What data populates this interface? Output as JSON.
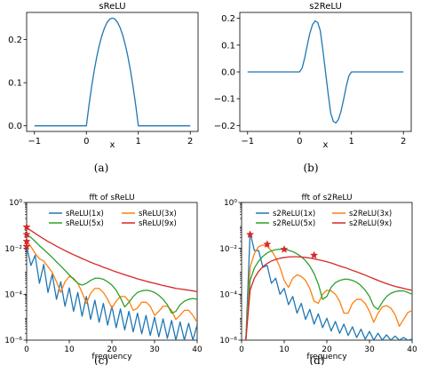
{
  "captions": [
    "(a)",
    "(b)",
    "(c)",
    "(d)"
  ],
  "chart_data": [
    {
      "type": "line",
      "title": "sReLU",
      "xlabel": "x",
      "ylabel": "",
      "xlim": [
        -1.15,
        2.15
      ],
      "ylim": [
        -0.013,
        0.263
      ],
      "xticks": [
        -1,
        0,
        1,
        2
      ],
      "yticks": [
        0.0,
        0.1,
        0.2
      ],
      "xtick_labels": [
        "−1",
        "0",
        "1",
        "2"
      ],
      "ytick_labels": [
        "0.0",
        "0.1",
        "0.2"
      ],
      "grid": false,
      "series": [
        {
          "color": "#1f77b4",
          "x": [
            -1,
            0,
            0.05,
            0.1,
            0.15,
            0.2,
            0.25,
            0.3,
            0.35,
            0.4,
            0.45,
            0.5,
            0.55,
            0.6,
            0.65,
            0.7,
            0.75,
            0.8,
            0.85,
            0.9,
            0.95,
            1,
            2
          ],
          "y": [
            0,
            0,
            0.0475,
            0.09,
            0.1275,
            0.16,
            0.1875,
            0.21,
            0.2275,
            0.24,
            0.2475,
            0.25,
            0.2475,
            0.24,
            0.2275,
            0.21,
            0.1875,
            0.16,
            0.1275,
            0.09,
            0.0475,
            0,
            0
          ]
        }
      ]
    },
    {
      "type": "line",
      "title": "s2ReLU",
      "xlabel": "x",
      "ylabel": "",
      "xlim": [
        -1.15,
        2.15
      ],
      "ylim": [
        -0.222,
        0.222
      ],
      "xticks": [
        -1,
        0,
        1,
        2
      ],
      "yticks": [
        -0.2,
        -0.1,
        0.0,
        0.1,
        0.2
      ],
      "xtick_labels": [
        "−1",
        "0",
        "1",
        "2"
      ],
      "ytick_labels": [
        "−0.2",
        "−0.1",
        "0.0",
        "0.1",
        "0.2"
      ],
      "grid": false,
      "series": [
        {
          "color": "#1f77b4",
          "x": [
            -1,
            0,
            0.05,
            0.1,
            0.15,
            0.2,
            0.25,
            0.3,
            0.35,
            0.4,
            0.45,
            0.5,
            0.55,
            0.6,
            0.65,
            0.7,
            0.75,
            0.8,
            0.85,
            0.9,
            0.95,
            1,
            2
          ],
          "y": [
            0,
            0,
            0.0147,
            0.0529,
            0.1011,
            0.1453,
            0.1768,
            0.1902,
            0.1843,
            0.1534,
            0.0801,
            0,
            -0.0801,
            -0.1534,
            -0.1843,
            -0.1902,
            -0.1768,
            -0.1453,
            -0.1011,
            -0.0529,
            -0.0147,
            0,
            0
          ]
        }
      ]
    },
    {
      "type": "line",
      "title": "fft of sReLU",
      "xlabel": "frequency",
      "ylabel": "",
      "xscale": "linear",
      "yscale": "log",
      "xlim": [
        0,
        40
      ],
      "ylim": [
        1e-06,
        1
      ],
      "xticks": [
        0,
        10,
        20,
        30,
        40
      ],
      "yticks": [
        1e-06,
        0.0001,
        0.01,
        1
      ],
      "xtick_labels": [
        "0",
        "10",
        "20",
        "30",
        "40"
      ],
      "ytick_labels": [
        "10⁻⁶",
        "10⁻⁴",
        "10⁻²",
        "10⁰"
      ],
      "legend": {
        "location": "top",
        "columns": 2
      },
      "series": [
        {
          "name": "sReLU(1x)",
          "color": "#1f77b4",
          "x": [
            0,
            1,
            2,
            3,
            4,
            5,
            6,
            7,
            8,
            9,
            10,
            11,
            12,
            13,
            14,
            15,
            16,
            17,
            18,
            19,
            20,
            21,
            22,
            23,
            24,
            25,
            26,
            27,
            28,
            29,
            30,
            31,
            32,
            33,
            34,
            35,
            36,
            37,
            38,
            39,
            40
          ],
          "y": [
            0.012,
            0.0018,
            0.005,
            0.0003,
            0.002,
            0.00012,
            0.00075,
            6e-05,
            0.00035,
            3e-05,
            0.00019,
            1.8e-05,
            0.00012,
            1.1e-05,
            8e-05,
            8e-06,
            5.5e-05,
            6e-06,
            4e-05,
            4.5e-06,
            3e-05,
            3.5e-06,
            2.3e-05,
            2.8e-06,
            1.8e-05,
            2.3e-06,
            1.5e-05,
            1.9e-06,
            1.2e-05,
            1.6e-06,
            1e-05,
            1.4e-06,
            8.5e-06,
            1.2e-06,
            7.2e-06,
            1e-06,
            6.2e-06,
            9e-07,
            5.4e-06,
            8e-07,
            4.7e-06
          ]
        },
        {
          "name": "sReLU(3x)",
          "color": "#ff7f0e",
          "x": [
            0,
            1,
            2,
            3,
            4,
            5,
            6,
            7,
            8,
            9,
            10,
            11,
            12,
            13,
            14,
            15,
            16,
            17,
            18,
            19,
            20,
            21,
            22,
            23,
            24,
            25,
            26,
            27,
            28,
            29,
            30,
            31,
            32,
            33,
            34,
            35,
            36,
            37,
            38,
            39,
            40
          ],
          "y": [
            0.02,
            0.012,
            0.006,
            0.0035,
            0.0028,
            0.0016,
            0.0009,
            0.00035,
            0.00012,
            0.00035,
            0.0006,
            0.0005,
            0.0003,
            0.00012,
            4e-05,
            0.00011,
            0.00018,
            0.00018,
            0.00012,
            6e-05,
            2.5e-05,
            5e-05,
            8e-05,
            8e-05,
            5e-05,
            2e-05,
            2.5e-05,
            4.5e-05,
            4.5e-05,
            3e-05,
            1.2e-05,
            1.8e-05,
            3e-05,
            3e-05,
            2e-05,
            8e-06,
            1.2e-05,
            2e-05,
            2e-05,
            1.2e-05,
            6e-06
          ]
        },
        {
          "name": "sReLU(5x)",
          "color": "#2ca02c",
          "x": [
            0,
            1,
            2,
            3,
            4,
            5,
            6,
            7,
            8,
            9,
            10,
            11,
            12,
            13,
            14,
            15,
            16,
            17,
            18,
            19,
            20,
            21,
            22,
            23,
            24,
            25,
            26,
            27,
            28,
            29,
            30,
            31,
            32,
            33,
            34,
            35,
            36,
            37,
            38,
            39,
            40
          ],
          "y": [
            0.04,
            0.03,
            0.02,
            0.013,
            0.009,
            0.006,
            0.004,
            0.0026,
            0.0017,
            0.0011,
            0.0007,
            0.00045,
            0.0003,
            0.00025,
            0.0003,
            0.0004,
            0.0005,
            0.0005,
            0.00045,
            0.00035,
            0.00025,
            0.00015,
            7e-05,
            2.8e-05,
            4.5e-05,
            8e-05,
            0.00012,
            0.00014,
            0.00015,
            0.00014,
            0.00012,
            9e-05,
            6e-05,
            3.5e-05,
            1.5e-05,
            1.8e-05,
            3.5e-05,
            5e-05,
            6e-05,
            6.5e-05,
            6e-05
          ]
        },
        {
          "name": "sReLU(9x)",
          "color": "#d62728",
          "x": [
            0,
            1,
            2,
            3,
            4,
            5,
            6,
            7,
            8,
            9,
            10,
            11,
            12,
            13,
            14,
            15,
            16,
            17,
            18,
            19,
            20,
            21,
            22,
            23,
            24,
            25,
            26,
            27,
            28,
            29,
            30,
            31,
            32,
            33,
            34,
            35,
            36,
            37,
            38,
            39,
            40
          ],
          "y": [
            0.08,
            0.06,
            0.045,
            0.034,
            0.026,
            0.02,
            0.016,
            0.0125,
            0.01,
            0.008,
            0.0065,
            0.0053,
            0.0044,
            0.0036,
            0.003,
            0.0025,
            0.0021,
            0.0018,
            0.0015,
            0.0013,
            0.0011,
            0.00095,
            0.00082,
            0.00071,
            0.00062,
            0.00054,
            0.00047,
            0.00042,
            0.00037,
            0.00033,
            0.0003,
            0.00027,
            0.00024,
            0.00022,
            0.0002,
            0.00018,
            0.00017,
            0.00016,
            0.00015,
            0.00014,
            0.00013
          ]
        }
      ],
      "markers": [
        {
          "color": "#d62728",
          "x": 0,
          "y": 0.085
        },
        {
          "color": "#d62728",
          "x": 0,
          "y": 0.04
        },
        {
          "color": "#d62728",
          "x": 0,
          "y": 0.02
        },
        {
          "color": "#d62728",
          "x": 0,
          "y": 0.012
        }
      ]
    },
    {
      "type": "line",
      "title": "fft of s2ReLU",
      "xlabel": "frequency",
      "ylabel": "",
      "xscale": "linear",
      "yscale": "log",
      "xlim": [
        0,
        40
      ],
      "ylim": [
        1e-06,
        1
      ],
      "xticks": [
        0,
        10,
        20,
        30,
        40
      ],
      "yticks": [
        1e-06,
        0.0001,
        0.01,
        1
      ],
      "xtick_labels": [
        "0",
        "10",
        "20",
        "30",
        "40"
      ],
      "ytick_labels": [
        "10⁻⁶",
        "10⁻⁴",
        "10⁻²",
        "10⁰"
      ],
      "legend": {
        "location": "top",
        "columns": 2
      },
      "series": [
        {
          "name": "s2ReLU(1x)",
          "color": "#1f77b4",
          "x": [
            1,
            2,
            3,
            4,
            5,
            6,
            7,
            8,
            9,
            10,
            11,
            12,
            13,
            14,
            15,
            16,
            17,
            18,
            19,
            20,
            21,
            22,
            23,
            24,
            25,
            26,
            27,
            28,
            29,
            30,
            31,
            32,
            33,
            34,
            35,
            36,
            37,
            38,
            39,
            40
          ],
          "y": [
            1e-06,
            0.05,
            0.008,
            0.008,
            0.0015,
            0.0018,
            0.0003,
            0.0005,
            0.0001,
            0.00018,
            3.5e-05,
            8e-05,
            1.5e-05,
            4e-05,
            8e-06,
            2.2e-05,
            5e-06,
            1.4e-05,
            3.5e-06,
            9e-06,
            2.5e-06,
            6.5e-06,
            2e-06,
            5e-06,
            1.6e-06,
            3.8e-06,
            1.3e-06,
            3e-06,
            1.1e-06,
            2.4e-06,
            1e-06,
            2e-06,
            9e-07,
            1.7e-06,
            8e-07,
            1.5e-06,
            7e-07,
            1.3e-06,
            6e-07,
            1.1e-06
          ]
        },
        {
          "name": "s2ReLU(3x)",
          "color": "#ff7f0e",
          "x": [
            1,
            2,
            3,
            4,
            5,
            6,
            7,
            8,
            9,
            10,
            11,
            12,
            13,
            14,
            15,
            16,
            17,
            18,
            19,
            20,
            21,
            22,
            23,
            24,
            25,
            26,
            27,
            28,
            29,
            30,
            31,
            32,
            33,
            34,
            35,
            36,
            37,
            38,
            39,
            40
          ],
          "y": [
            1e-06,
            0.0015,
            0.006,
            0.012,
            0.014,
            0.012,
            0.008,
            0.004,
            0.0015,
            0.0004,
            0.0002,
            0.0005,
            0.0007,
            0.0006,
            0.0004,
            0.00018,
            5e-05,
            4e-05,
            0.0001,
            0.00015,
            0.00014,
            0.0001,
            5e-05,
            1.5e-05,
            1.5e-05,
            4e-05,
            6e-05,
            6e-05,
            4e-05,
            1.8e-05,
            6e-06,
            1.5e-05,
            2.8e-05,
            3.2e-05,
            2.5e-05,
            1.3e-05,
            4e-06,
            8e-06,
            1.6e-05,
            2e-05
          ]
        },
        {
          "name": "s2ReLU(5x)",
          "color": "#2ca02c",
          "x": [
            1,
            2,
            3,
            4,
            5,
            6,
            7,
            8,
            9,
            10,
            11,
            12,
            13,
            14,
            15,
            16,
            17,
            18,
            19,
            20,
            21,
            22,
            23,
            24,
            25,
            26,
            27,
            28,
            29,
            30,
            31,
            32,
            33,
            34,
            35,
            36,
            37,
            38,
            39,
            40
          ],
          "y": [
            1e-06,
            0.0004,
            0.0014,
            0.0028,
            0.0045,
            0.0063,
            0.0078,
            0.0088,
            0.0092,
            0.009,
            0.0083,
            0.0072,
            0.0058,
            0.0043,
            0.0029,
            0.0017,
            0.0008,
            0.00028,
            6e-05,
            8e-05,
            0.0002,
            0.00032,
            0.0004,
            0.00045,
            0.00045,
            0.0004,
            0.00033,
            0.00024,
            0.00015,
            8e-05,
            3e-05,
            2.2e-05,
            4.5e-05,
            8e-05,
            0.00011,
            0.00013,
            0.00014,
            0.00014,
            0.00012,
            0.0001
          ]
        },
        {
          "name": "s2ReLU(9x)",
          "color": "#d62728",
          "x": [
            1,
            2,
            3,
            4,
            5,
            6,
            7,
            8,
            9,
            10,
            11,
            12,
            13,
            14,
            15,
            16,
            17,
            18,
            19,
            20,
            21,
            22,
            23,
            24,
            25,
            26,
            27,
            28,
            29,
            30,
            31,
            32,
            33,
            34,
            35,
            36,
            37,
            38,
            39,
            40
          ],
          "y": [
            1e-06,
            0.00015,
            0.0005,
            0.001,
            0.0016,
            0.0022,
            0.0028,
            0.0033,
            0.0037,
            0.004,
            0.0042,
            0.0043,
            0.0043,
            0.0042,
            0.004,
            0.0038,
            0.0035,
            0.0032,
            0.0029,
            0.0026,
            0.0023,
            0.002,
            0.0017,
            0.0015,
            0.0013,
            0.0011,
            0.00095,
            0.0008,
            0.00068,
            0.00057,
            0.00048,
            0.0004,
            0.00034,
            0.00029,
            0.00025,
            0.00022,
            0.0002,
            0.00018,
            0.00016,
            0.00015
          ]
        }
      ],
      "markers": [
        {
          "color": "#d62728",
          "x": 2,
          "y": 0.04
        },
        {
          "color": "#d62728",
          "x": 6,
          "y": 0.015
        },
        {
          "color": "#d62728",
          "x": 10,
          "y": 0.009
        },
        {
          "color": "#d62728",
          "x": 17,
          "y": 0.005
        }
      ]
    }
  ]
}
